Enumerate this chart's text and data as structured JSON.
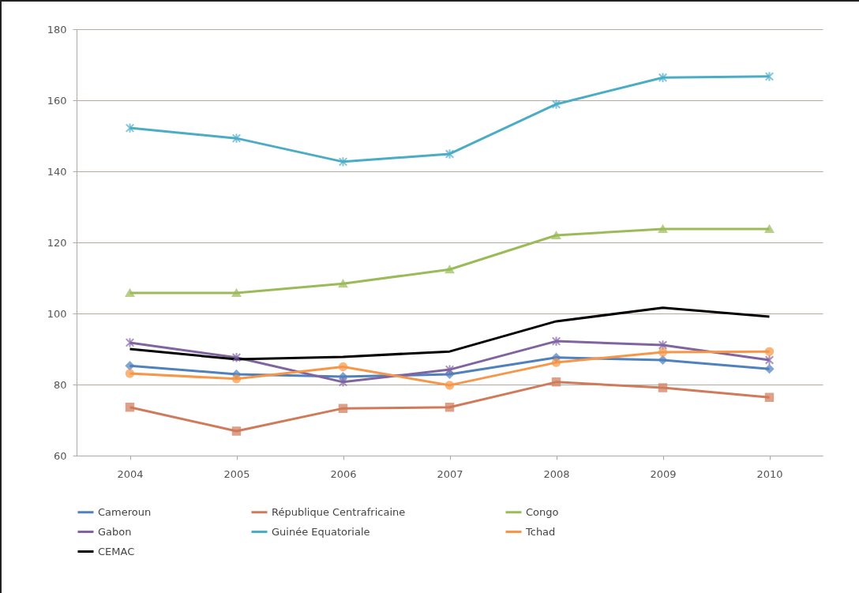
{
  "chart_data": {
    "type": "line",
    "categories": [
      "2004",
      "2005",
      "2006",
      "2007",
      "2008",
      "2009",
      "2010"
    ],
    "series": [
      {
        "name": "Cameroun",
        "color": "#4f81bd",
        "marker": "diamond",
        "values": [
          85.3,
          82.9,
          82.2,
          82.9,
          87.6,
          86.9,
          84.4
        ]
      },
      {
        "name": "République Centrafricaine",
        "color": "#d07a5a",
        "marker": "square",
        "values": [
          73.6,
          66.9,
          73.3,
          73.6,
          80.7,
          79.1,
          76.4
        ]
      },
      {
        "name": "Congo",
        "color": "#9bbb59",
        "marker": "triangle",
        "values": [
          105.8,
          105.8,
          108.4,
          112.4,
          122,
          123.8,
          123.8
        ]
      },
      {
        "name": "Gabon",
        "color": "#8064a2",
        "marker": "cross",
        "values": [
          91.8,
          87.6,
          80.7,
          84.2,
          92.2,
          91.1,
          86.9
        ]
      },
      {
        "name": "Guinée Equatoriale",
        "color": "#4bacc6",
        "marker": "cross",
        "values": [
          152.2,
          149.3,
          142.7,
          144.9,
          158.9,
          166.4,
          166.7
        ]
      },
      {
        "name": "Tchad",
        "color": "#f79646",
        "marker": "circle",
        "values": [
          83.1,
          81.6,
          85,
          79.8,
          86.2,
          89.1,
          89.3
        ]
      },
      {
        "name": "CEMAC",
        "color": "#000000",
        "marker": "none",
        "values": [
          90,
          87.1,
          87.8,
          89.3,
          97.8,
          101.6,
          99.1
        ]
      }
    ],
    "ylim": [
      60,
      180
    ],
    "yticks": [
      60,
      80,
      100,
      120,
      140,
      160,
      180
    ],
    "grid": "y",
    "legend": "bottom"
  }
}
